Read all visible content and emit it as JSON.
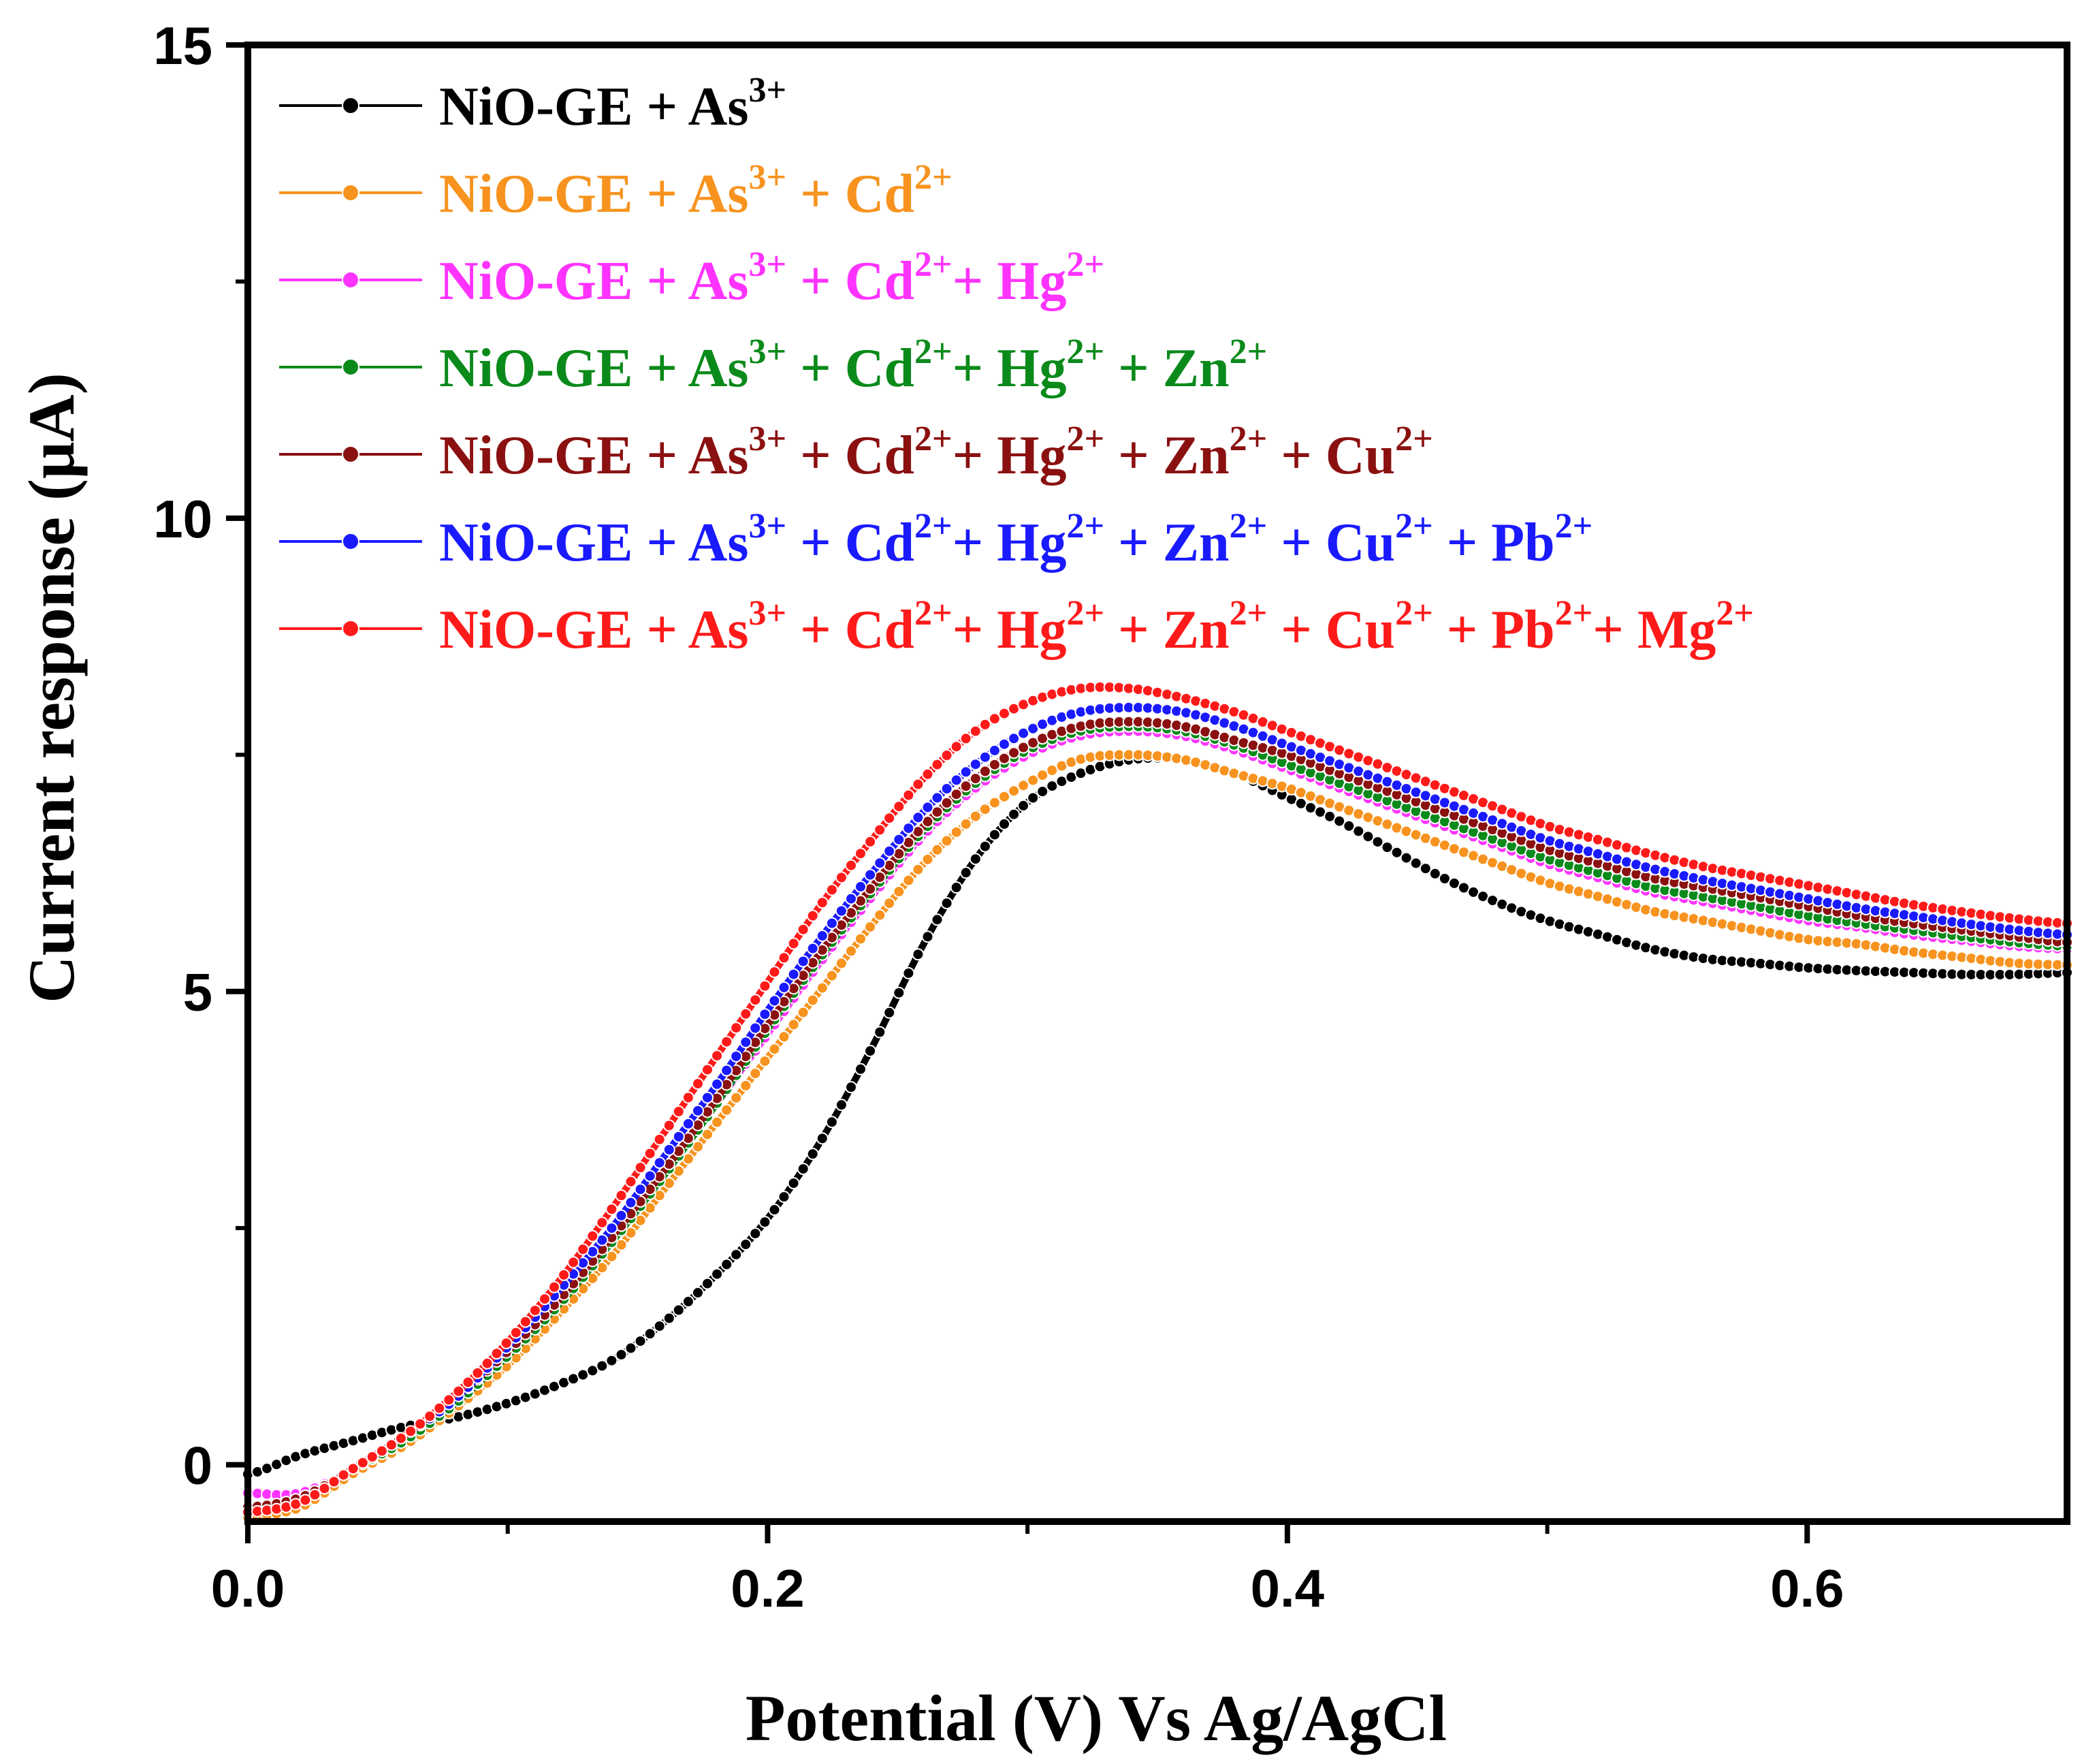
{
  "chart_data": {
    "type": "line",
    "title": "",
    "xlabel": "Potential (V) Vs Ag/AgCl",
    "ylabel": "Current response (μA)",
    "xlim": [
      0.0,
      0.7
    ],
    "ylim": [
      -0.6,
      15
    ],
    "xticks": [
      0.0,
      0.2,
      0.4,
      0.6
    ],
    "xtick_labels": [
      "0.0",
      "0.2",
      "0.4",
      "0.6"
    ],
    "yticks": [
      0,
      5,
      10,
      15
    ],
    "ytick_labels": [
      "0",
      "5",
      "10",
      "15"
    ],
    "legend_position": "top-left",
    "series": [
      {
        "name": "NiO-GE + As³⁺",
        "legend_parts": [
          [
            "NiO-GE + As",
            "3+"
          ]
        ],
        "color": "#000000",
        "x": [
          0.0,
          0.02,
          0.04,
          0.06,
          0.08,
          0.1,
          0.12,
          0.14,
          0.16,
          0.18,
          0.2,
          0.22,
          0.24,
          0.26,
          0.28,
          0.3,
          0.32,
          0.34,
          0.36,
          0.38,
          0.4,
          0.42,
          0.44,
          0.46,
          0.48,
          0.5,
          0.52,
          0.54,
          0.56,
          0.58,
          0.6,
          0.62,
          0.64,
          0.66,
          0.68,
          0.7
        ],
        "y": [
          -0.1,
          0.1,
          0.25,
          0.4,
          0.5,
          0.65,
          0.85,
          1.1,
          1.5,
          2.0,
          2.6,
          3.4,
          4.4,
          5.5,
          6.4,
          7.0,
          7.3,
          7.45,
          7.45,
          7.3,
          7.05,
          6.8,
          6.5,
          6.2,
          5.95,
          5.75,
          5.6,
          5.45,
          5.35,
          5.3,
          5.25,
          5.22,
          5.2,
          5.18,
          5.18,
          5.2
        ]
      },
      {
        "name": "NiO-GE + As³⁺ + Cd²⁺",
        "legend_parts": [
          [
            "NiO-GE + As",
            "3+"
          ],
          [
            " + Cd",
            "2+"
          ]
        ],
        "color": "#f7931e",
        "x": [
          0.0,
          0.02,
          0.04,
          0.06,
          0.08,
          0.1,
          0.12,
          0.14,
          0.16,
          0.18,
          0.2,
          0.22,
          0.24,
          0.26,
          0.28,
          0.3,
          0.32,
          0.34,
          0.36,
          0.38,
          0.4,
          0.42,
          0.44,
          0.46,
          0.48,
          0.5,
          0.52,
          0.54,
          0.56,
          0.58,
          0.6,
          0.62,
          0.64,
          0.66,
          0.68,
          0.7
        ],
        "y": [
          -0.55,
          -0.45,
          -0.1,
          0.2,
          0.6,
          1.05,
          1.6,
          2.2,
          2.9,
          3.6,
          4.3,
          5.0,
          5.7,
          6.35,
          6.85,
          7.2,
          7.45,
          7.5,
          7.45,
          7.3,
          7.15,
          6.95,
          6.75,
          6.55,
          6.35,
          6.15,
          6.0,
          5.85,
          5.75,
          5.65,
          5.55,
          5.5,
          5.42,
          5.36,
          5.3,
          5.28
        ]
      },
      {
        "name": "NiO-GE + As³⁺ + Cd²⁺+ Hg²⁺",
        "legend_parts": [
          [
            "NiO-GE + As",
            "3+"
          ],
          [
            " + Cd",
            "2+"
          ],
          [
            "+ Hg",
            "2+"
          ]
        ],
        "color": "#ff33ff",
        "x": [
          0.0,
          0.02,
          0.04,
          0.06,
          0.08,
          0.1,
          0.12,
          0.14,
          0.16,
          0.18,
          0.2,
          0.22,
          0.24,
          0.26,
          0.28,
          0.3,
          0.32,
          0.34,
          0.36,
          0.38,
          0.4,
          0.42,
          0.44,
          0.46,
          0.48,
          0.5,
          0.52,
          0.54,
          0.56,
          0.58,
          0.6,
          0.62,
          0.64,
          0.66,
          0.68,
          0.7
        ],
        "y": [
          -0.3,
          -0.3,
          -0.05,
          0.25,
          0.65,
          1.15,
          1.7,
          2.35,
          3.05,
          3.8,
          4.55,
          5.3,
          6.0,
          6.65,
          7.15,
          7.5,
          7.7,
          7.75,
          7.7,
          7.55,
          7.35,
          7.15,
          6.95,
          6.75,
          6.55,
          6.35,
          6.2,
          6.05,
          5.95,
          5.85,
          5.75,
          5.68,
          5.6,
          5.54,
          5.48,
          5.45
        ]
      },
      {
        "name": "NiO-GE + As³⁺ + Cd²⁺+ Hg²⁺ + Zn²⁺",
        "legend_parts": [
          [
            "NiO-GE + As",
            "3+"
          ],
          [
            " + Cd",
            "2+"
          ],
          [
            "+ Hg",
            "2+"
          ],
          [
            " + Zn",
            "2+"
          ]
        ],
        "color": "#0a8a1a",
        "x": [
          0.0,
          0.02,
          0.04,
          0.06,
          0.08,
          0.1,
          0.12,
          0.14,
          0.16,
          0.18,
          0.2,
          0.22,
          0.24,
          0.26,
          0.28,
          0.3,
          0.32,
          0.34,
          0.36,
          0.38,
          0.4,
          0.42,
          0.44,
          0.46,
          0.48,
          0.5,
          0.52,
          0.54,
          0.56,
          0.58,
          0.6,
          0.62,
          0.64,
          0.66,
          0.68,
          0.7
        ],
        "y": [
          -0.45,
          -0.35,
          -0.05,
          0.25,
          0.65,
          1.15,
          1.7,
          2.35,
          3.05,
          3.8,
          4.6,
          5.35,
          6.05,
          6.7,
          7.2,
          7.55,
          7.75,
          7.8,
          7.75,
          7.6,
          7.4,
          7.2,
          7.0,
          6.8,
          6.6,
          6.4,
          6.25,
          6.1,
          6.0,
          5.9,
          5.8,
          5.72,
          5.65,
          5.58,
          5.52,
          5.48
        ]
      },
      {
        "name": "NiO-GE + As³⁺ + Cd²⁺+ Hg²⁺ + Zn²⁺ + Cu²⁺",
        "legend_parts": [
          [
            "NiO-GE + As",
            "3+"
          ],
          [
            " + Cd",
            "2+"
          ],
          [
            "+ Hg",
            "2+"
          ],
          [
            " + Zn",
            "2+"
          ],
          [
            " + Cu",
            "2+"
          ]
        ],
        "color": "#8b1010",
        "x": [
          0.0,
          0.02,
          0.04,
          0.06,
          0.08,
          0.1,
          0.12,
          0.14,
          0.16,
          0.18,
          0.2,
          0.22,
          0.24,
          0.26,
          0.28,
          0.3,
          0.32,
          0.34,
          0.36,
          0.38,
          0.4,
          0.42,
          0.44,
          0.46,
          0.48,
          0.5,
          0.52,
          0.54,
          0.56,
          0.58,
          0.6,
          0.62,
          0.64,
          0.66,
          0.68,
          0.7
        ],
        "y": [
          -0.45,
          -0.35,
          -0.05,
          0.3,
          0.7,
          1.2,
          1.75,
          2.4,
          3.1,
          3.85,
          4.65,
          5.4,
          6.1,
          6.75,
          7.25,
          7.6,
          7.8,
          7.85,
          7.8,
          7.65,
          7.5,
          7.3,
          7.1,
          6.9,
          6.7,
          6.5,
          6.35,
          6.2,
          6.1,
          6.0,
          5.9,
          5.8,
          5.72,
          5.65,
          5.58,
          5.52
        ]
      },
      {
        "name": "NiO-GE + As³⁺ + Cd²⁺+ Hg²⁺ + Zn²⁺ + Cu²⁺ + Pb²⁺",
        "legend_parts": [
          [
            "NiO-GE + As",
            "3+"
          ],
          [
            " + Cd",
            "2+"
          ],
          [
            "+ Hg",
            "2+"
          ],
          [
            " + Zn",
            "2+"
          ],
          [
            " + Cu",
            "2+"
          ],
          [
            " + Pb",
            "2+"
          ]
        ],
        "color": "#1a1aff",
        "x": [
          0.0,
          0.02,
          0.04,
          0.06,
          0.08,
          0.1,
          0.12,
          0.14,
          0.16,
          0.18,
          0.2,
          0.22,
          0.24,
          0.26,
          0.28,
          0.3,
          0.32,
          0.34,
          0.36,
          0.38,
          0.4,
          0.42,
          0.44,
          0.46,
          0.48,
          0.5,
          0.52,
          0.54,
          0.56,
          0.58,
          0.6,
          0.62,
          0.64,
          0.66,
          0.68,
          0.7
        ],
        "y": [
          -0.5,
          -0.4,
          -0.05,
          0.3,
          0.7,
          1.25,
          1.85,
          2.5,
          3.25,
          4.0,
          4.8,
          5.55,
          6.25,
          6.9,
          7.4,
          7.75,
          7.95,
          8.0,
          7.95,
          7.8,
          7.6,
          7.4,
          7.2,
          7.0,
          6.8,
          6.6,
          6.45,
          6.3,
          6.18,
          6.08,
          5.98,
          5.88,
          5.8,
          5.72,
          5.65,
          5.6
        ]
      },
      {
        "name": "NiO-GE + As³⁺ + Cd²⁺+ Hg²⁺ + Zn²⁺ + Cu²⁺ + Pb²⁺+ Mg²⁺",
        "legend_parts": [
          [
            "NiO-GE + As",
            "3+"
          ],
          [
            " + Cd",
            "2+"
          ],
          [
            "+ Hg",
            "2+"
          ],
          [
            " + Zn",
            "2+"
          ],
          [
            " + Cu",
            "2+"
          ],
          [
            " + Pb",
            "2+"
          ],
          [
            "+ Mg",
            "2+"
          ]
        ],
        "color": "#ff1a1a",
        "x": [
          0.0,
          0.02,
          0.04,
          0.06,
          0.08,
          0.1,
          0.12,
          0.14,
          0.16,
          0.18,
          0.2,
          0.22,
          0.24,
          0.26,
          0.28,
          0.3,
          0.32,
          0.34,
          0.36,
          0.38,
          0.4,
          0.42,
          0.44,
          0.46,
          0.48,
          0.5,
          0.52,
          0.54,
          0.56,
          0.58,
          0.6,
          0.62,
          0.64,
          0.66,
          0.68,
          0.7
        ],
        "y": [
          -0.5,
          -0.4,
          -0.05,
          0.3,
          0.75,
          1.3,
          1.95,
          2.7,
          3.5,
          4.3,
          5.1,
          5.9,
          6.6,
          7.25,
          7.75,
          8.05,
          8.2,
          8.2,
          8.1,
          7.95,
          7.75,
          7.55,
          7.35,
          7.15,
          6.95,
          6.75,
          6.6,
          6.45,
          6.32,
          6.22,
          6.12,
          6.02,
          5.92,
          5.84,
          5.77,
          5.72
        ]
      }
    ]
  }
}
